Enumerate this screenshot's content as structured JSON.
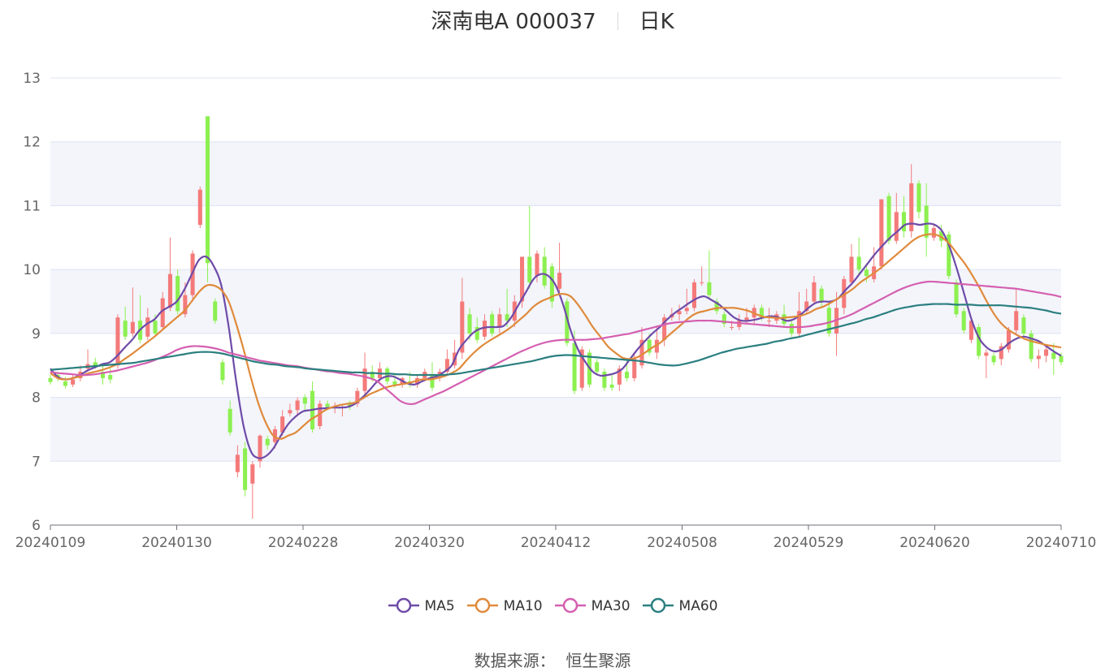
{
  "title": {
    "name": "深南电A 000037",
    "period": "日K"
  },
  "source": {
    "label": "数据来源：",
    "value": "恒生聚源"
  },
  "colors": {
    "up": "#f47a7a",
    "down": "#8cf050",
    "ma5": "#6e4ba8",
    "ma10": "#e08a3b",
    "ma30": "#d55fb0",
    "ma60": "#2b7f80",
    "grid": "#dde3f2",
    "band": "#f3f5fb"
  },
  "chart_data": {
    "type": "candlestick",
    "ylim": [
      6,
      13
    ],
    "yticks": [
      6,
      7,
      8,
      9,
      10,
      11,
      12,
      13
    ],
    "grid": true,
    "legend_position": "bottom",
    "x_range": [
      "20240109",
      "20240710"
    ],
    "xticks": [
      "20240109",
      "20240130",
      "20240228",
      "20240320",
      "20240412",
      "20240508",
      "20240529",
      "20240620",
      "20240710"
    ],
    "candles": [
      [
        8.3,
        8.24,
        8.35,
        8.2
      ],
      [
        8.35,
        8.3,
        8.4,
        8.25
      ],
      [
        8.25,
        8.18,
        8.32,
        8.14
      ],
      [
        8.2,
        8.28,
        8.35,
        8.16
      ],
      [
        8.3,
        8.4,
        8.5,
        8.25
      ],
      [
        8.45,
        8.52,
        8.75,
        8.4
      ],
      [
        8.55,
        8.5,
        8.62,
        8.45
      ],
      [
        8.4,
        8.3,
        8.5,
        8.2
      ],
      [
        8.35,
        8.28,
        8.45,
        8.22
      ],
      [
        8.5,
        9.25,
        9.3,
        8.45
      ],
      [
        9.2,
        8.95,
        9.42,
        8.9
      ],
      [
        9.0,
        9.18,
        9.72,
        8.95
      ],
      [
        9.2,
        8.9,
        9.6,
        8.85
      ],
      [
        8.95,
        9.25,
        9.4,
        8.9
      ],
      [
        9.2,
        9.0,
        9.3,
        8.95
      ],
      [
        9.1,
        9.55,
        9.65,
        9.05
      ],
      [
        9.4,
        9.93,
        10.5,
        9.35
      ],
      [
        9.9,
        9.35,
        10.0,
        9.3
      ],
      [
        9.3,
        9.6,
        9.8,
        9.25
      ],
      [
        9.6,
        10.25,
        10.3,
        9.5
      ],
      [
        10.7,
        11.25,
        11.3,
        10.65
      ],
      [
        12.4,
        10.1,
        12.4,
        9.8
      ],
      [
        9.5,
        9.2,
        9.55,
        9.15
      ],
      [
        8.55,
        8.27,
        8.6,
        8.2
      ],
      [
        7.82,
        7.45,
        7.95,
        7.4
      ],
      [
        6.83,
        7.1,
        7.25,
        6.75
      ],
      [
        7.2,
        6.55,
        7.3,
        6.45
      ],
      [
        6.65,
        6.95,
        7.0,
        6.1
      ],
      [
        7.0,
        7.4,
        7.42,
        6.9
      ],
      [
        7.35,
        7.25,
        7.4,
        7.18
      ],
      [
        7.3,
        7.5,
        7.55,
        7.2
      ],
      [
        7.45,
        7.7,
        7.8,
        7.4
      ],
      [
        7.75,
        7.8,
        7.9,
        7.7
      ],
      [
        7.8,
        7.95,
        8.0,
        7.7
      ],
      [
        8.0,
        7.9,
        8.05,
        7.8
      ],
      [
        8.1,
        7.5,
        8.25,
        7.45
      ],
      [
        7.55,
        7.9,
        7.95,
        7.5
      ],
      [
        7.9,
        7.85,
        7.95,
        7.8
      ],
      [
        7.85,
        7.85,
        7.92,
        7.75
      ],
      [
        7.85,
        7.85,
        7.9,
        7.7
      ],
      [
        7.9,
        7.85,
        7.95,
        7.8
      ],
      [
        7.9,
        8.1,
        8.15,
        7.85
      ],
      [
        8.1,
        8.45,
        8.7,
        8.0
      ],
      [
        8.4,
        8.3,
        8.5,
        8.25
      ],
      [
        8.3,
        8.45,
        8.55,
        8.25
      ],
      [
        8.45,
        8.25,
        8.48,
        8.2
      ],
      [
        8.25,
        8.2,
        8.35,
        8.15
      ],
      [
        8.2,
        8.3,
        8.32,
        8.15
      ],
      [
        8.25,
        8.2,
        8.4,
        8.15
      ],
      [
        8.2,
        8.3,
        8.35,
        8.15
      ],
      [
        8.3,
        8.4,
        8.45,
        8.25
      ],
      [
        8.35,
        8.15,
        8.55,
        8.1
      ],
      [
        8.3,
        8.4,
        8.45,
        8.25
      ],
      [
        8.4,
        8.6,
        8.75,
        8.35
      ],
      [
        8.5,
        8.7,
        8.9,
        8.45
      ],
      [
        8.7,
        9.5,
        9.87,
        8.6
      ],
      [
        9.3,
        9.0,
        9.4,
        8.9
      ],
      [
        9.1,
        8.9,
        9.25,
        8.85
      ],
      [
        8.95,
        9.2,
        9.3,
        8.9
      ],
      [
        9.3,
        9.0,
        9.35,
        8.95
      ],
      [
        9.1,
        9.3,
        9.4,
        9.0
      ],
      [
        9.3,
        9.2,
        9.7,
        9.1
      ],
      [
        9.2,
        9.5,
        9.6,
        9.1
      ],
      [
        9.5,
        10.2,
        10.2,
        9.4
      ],
      [
        10.2,
        9.8,
        11.0,
        9.7
      ],
      [
        9.9,
        10.25,
        10.3,
        9.8
      ],
      [
        10.2,
        9.75,
        10.35,
        9.7
      ],
      [
        10.05,
        9.5,
        10.1,
        9.4
      ],
      [
        9.7,
        9.95,
        10.42,
        9.65
      ],
      [
        9.5,
        8.85,
        9.55,
        8.8
      ],
      [
        8.85,
        8.1,
        9.05,
        8.05
      ],
      [
        8.15,
        8.75,
        8.8,
        8.1
      ],
      [
        8.7,
        8.2,
        8.75,
        8.15
      ],
      [
        8.55,
        8.4,
        8.6,
        8.35
      ],
      [
        8.4,
        8.15,
        8.45,
        8.1
      ],
      [
        8.2,
        8.15,
        8.35,
        8.1
      ],
      [
        8.2,
        8.45,
        8.5,
        8.1
      ],
      [
        8.4,
        8.3,
        8.6,
        8.25
      ],
      [
        8.3,
        8.6,
        8.7,
        8.25
      ],
      [
        8.5,
        8.9,
        9.1,
        8.45
      ],
      [
        8.9,
        8.7,
        9.0,
        8.65
      ],
      [
        8.7,
        8.9,
        9.1,
        8.6
      ],
      [
        8.9,
        9.25,
        9.3,
        8.8
      ],
      [
        9.25,
        9.3,
        9.4,
        9.2
      ],
      [
        9.3,
        9.35,
        9.45,
        9.2
      ],
      [
        9.35,
        9.4,
        9.7,
        9.3
      ],
      [
        9.4,
        9.8,
        9.85,
        9.35
      ],
      [
        9.8,
        9.8,
        10.05,
        9.75
      ],
      [
        9.8,
        9.6,
        10.3,
        9.55
      ],
      [
        9.5,
        9.35,
        9.55,
        9.3
      ],
      [
        9.3,
        9.15,
        9.35,
        9.1
      ],
      [
        9.1,
        9.1,
        9.2,
        9.05
      ],
      [
        9.1,
        9.2,
        9.3,
        9.05
      ],
      [
        9.2,
        9.25,
        9.4,
        9.15
      ],
      [
        9.25,
        9.4,
        9.45,
        9.15
      ],
      [
        9.4,
        9.25,
        9.45,
        9.2
      ],
      [
        9.2,
        9.2,
        9.4,
        9.1
      ],
      [
        9.2,
        9.3,
        9.35,
        9.15
      ],
      [
        9.3,
        9.15,
        9.45,
        9.1
      ],
      [
        9.15,
        9.0,
        9.2,
        8.95
      ],
      [
        9.0,
        9.35,
        9.65,
        8.95
      ],
      [
        9.35,
        9.5,
        9.7,
        9.3
      ],
      [
        9.5,
        9.8,
        9.9,
        9.45
      ],
      [
        9.7,
        9.5,
        9.75,
        9.4
      ],
      [
        9.4,
        9.0,
        9.5,
        8.95
      ],
      [
        9.0,
        9.4,
        9.65,
        8.65
      ],
      [
        9.4,
        9.85,
        9.9,
        9.3
      ],
      [
        9.8,
        10.2,
        10.4,
        9.75
      ],
      [
        10.2,
        10.0,
        10.5,
        9.9
      ],
      [
        10.0,
        9.9,
        10.1,
        9.8
      ],
      [
        9.85,
        10.05,
        10.35,
        9.8
      ],
      [
        10.05,
        11.1,
        11.1,
        10.0
      ],
      [
        11.15,
        10.45,
        11.2,
        10.4
      ],
      [
        10.45,
        10.9,
        11.2,
        10.4
      ],
      [
        10.9,
        10.6,
        11.15,
        10.5
      ],
      [
        10.6,
        11.35,
        11.65,
        10.5
      ],
      [
        11.35,
        10.9,
        11.4,
        10.8
      ],
      [
        11.0,
        10.5,
        11.35,
        10.2
      ],
      [
        10.5,
        10.65,
        10.7,
        10.45
      ],
      [
        10.6,
        10.45,
        10.7,
        10.35
      ],
      [
        10.55,
        9.9,
        10.6,
        9.85
      ],
      [
        9.8,
        9.3,
        9.85,
        9.25
      ],
      [
        9.35,
        9.05,
        9.4,
        9.0
      ],
      [
        8.9,
        9.2,
        9.25,
        8.85
      ],
      [
        9.1,
        8.65,
        9.15,
        8.6
      ],
      [
        8.65,
        8.7,
        8.75,
        8.3
      ],
      [
        8.65,
        8.55,
        8.7,
        8.5
      ],
      [
        8.6,
        8.8,
        8.85,
        8.5
      ],
      [
        8.75,
        9.05,
        9.1,
        8.7
      ],
      [
        9.05,
        9.35,
        9.7,
        9.0
      ],
      [
        9.25,
        9.0,
        9.3,
        8.95
      ],
      [
        9.0,
        8.6,
        9.05,
        8.55
      ],
      [
        8.6,
        8.65,
        8.75,
        8.45
      ],
      [
        8.65,
        8.75,
        8.8,
        8.55
      ],
      [
        8.7,
        8.6,
        8.85,
        8.35
      ],
      [
        8.65,
        8.55,
        8.7,
        8.5
      ]
    ],
    "series": [
      {
        "name": "MA5",
        "values": [
          8.45,
          8.32,
          8.28,
          8.3,
          8.35,
          8.42,
          8.47,
          8.52,
          8.55,
          8.65,
          8.78,
          8.9,
          9.05,
          9.15,
          9.22,
          9.35,
          9.42,
          9.5,
          9.68,
          9.92,
          10.15,
          10.2,
          10.05,
          9.75,
          9.1,
          8.25,
          7.55,
          7.15,
          7.05,
          7.08,
          7.2,
          7.4,
          7.58,
          7.7,
          7.78,
          7.8,
          7.82,
          7.83,
          7.84,
          7.84,
          7.85,
          7.9,
          8.0,
          8.12,
          8.25,
          8.32,
          8.33,
          8.28,
          8.22,
          8.2,
          8.25,
          8.3,
          8.33,
          8.4,
          8.5,
          8.75,
          8.9,
          9.02,
          9.08,
          9.1,
          9.1,
          9.12,
          9.25,
          9.45,
          9.65,
          9.85,
          9.93,
          9.9,
          9.75,
          9.45,
          9.05,
          8.75,
          8.55,
          8.4,
          8.34,
          8.35,
          8.38,
          8.45,
          8.6,
          8.75,
          8.88,
          9.0,
          9.1,
          9.22,
          9.32,
          9.4,
          9.48,
          9.55,
          9.58,
          9.52,
          9.45,
          9.35,
          9.25,
          9.2,
          9.2,
          9.22,
          9.25,
          9.27,
          9.25,
          9.2,
          9.22,
          9.3,
          9.4,
          9.48,
          9.5,
          9.5,
          9.55,
          9.68,
          9.8,
          9.95,
          10.1,
          10.25,
          10.38,
          10.5,
          10.6,
          10.7,
          10.72,
          10.7,
          10.72,
          10.7,
          10.6,
          10.35,
          10.0,
          9.6,
          9.2,
          8.92,
          8.78,
          8.72,
          8.75,
          8.85,
          8.92,
          8.95,
          8.92,
          8.88,
          8.8,
          8.72,
          8.65
        ]
      },
      {
        "name": "MA10",
        "values": [
          8.38,
          8.3,
          8.28,
          8.3,
          8.33,
          8.37,
          8.4,
          8.43,
          8.47,
          8.52,
          8.6,
          8.68,
          8.77,
          8.86,
          8.95,
          9.05,
          9.15,
          9.25,
          9.35,
          9.5,
          9.65,
          9.75,
          9.75,
          9.68,
          9.5,
          9.15,
          8.75,
          8.3,
          7.9,
          7.6,
          7.4,
          7.35,
          7.4,
          7.45,
          7.55,
          7.65,
          7.72,
          7.8,
          7.85,
          7.88,
          7.9,
          7.92,
          7.98,
          8.05,
          8.1,
          8.15,
          8.18,
          8.2,
          8.22,
          8.25,
          8.28,
          8.28,
          8.3,
          8.33,
          8.38,
          8.45,
          8.58,
          8.7,
          8.8,
          8.88,
          8.95,
          9.02,
          9.1,
          9.2,
          9.3,
          9.42,
          9.5,
          9.55,
          9.6,
          9.62,
          9.58,
          9.45,
          9.28,
          9.1,
          8.95,
          8.8,
          8.7,
          8.62,
          8.6,
          8.63,
          8.7,
          8.78,
          8.85,
          8.95,
          9.05,
          9.15,
          9.25,
          9.32,
          9.35,
          9.38,
          9.4,
          9.4,
          9.4,
          9.38,
          9.35,
          9.3,
          9.26,
          9.25,
          9.24,
          9.25,
          9.26,
          9.28,
          9.32,
          9.38,
          9.42,
          9.48,
          9.55,
          9.62,
          9.7,
          9.8,
          9.88,
          9.96,
          10.05,
          10.15,
          10.25,
          10.35,
          10.45,
          10.52,
          10.55,
          10.55,
          10.5,
          10.4,
          10.25,
          10.1,
          9.92,
          9.72,
          9.5,
          9.3,
          9.15,
          9.05,
          8.98,
          8.92,
          8.88,
          8.85,
          8.82,
          8.8,
          8.78
        ]
      },
      {
        "name": "MA30",
        "values": [
          8.4,
          8.38,
          8.37,
          8.36,
          8.35,
          8.35,
          8.36,
          8.38,
          8.4,
          8.42,
          8.45,
          8.48,
          8.51,
          8.54,
          8.58,
          8.63,
          8.68,
          8.74,
          8.78,
          8.8,
          8.8,
          8.79,
          8.77,
          8.74,
          8.7,
          8.67,
          8.64,
          8.61,
          8.58,
          8.56,
          8.54,
          8.52,
          8.5,
          8.49,
          8.47,
          8.45,
          8.43,
          8.41,
          8.4,
          8.38,
          8.37,
          8.35,
          8.33,
          8.3,
          8.25,
          8.15,
          8.05,
          7.95,
          7.9,
          7.9,
          7.95,
          8.0,
          8.05,
          8.1,
          8.16,
          8.22,
          8.28,
          8.34,
          8.4,
          8.46,
          8.52,
          8.58,
          8.64,
          8.7,
          8.75,
          8.8,
          8.84,
          8.87,
          8.89,
          8.9,
          8.9,
          8.9,
          8.9,
          8.91,
          8.92,
          8.94,
          8.96,
          8.98,
          9.0,
          9.03,
          9.06,
          9.09,
          9.12,
          9.15,
          9.17,
          9.18,
          9.19,
          9.2,
          9.2,
          9.2,
          9.19,
          9.18,
          9.17,
          9.16,
          9.15,
          9.14,
          9.13,
          9.12,
          9.11,
          9.1,
          9.1,
          9.1,
          9.11,
          9.13,
          9.15,
          9.18,
          9.22,
          9.26,
          9.31,
          9.37,
          9.43,
          9.49,
          9.55,
          9.61,
          9.67,
          9.72,
          9.76,
          9.79,
          9.81,
          9.81,
          9.8,
          9.79,
          9.78,
          9.77,
          9.76,
          9.75,
          9.74,
          9.73,
          9.72,
          9.71,
          9.7,
          9.68,
          9.66,
          9.64,
          9.62,
          9.6,
          9.57
        ]
      },
      {
        "name": "MA60",
        "values": [
          8.43,
          8.44,
          8.45,
          8.46,
          8.47,
          8.48,
          8.49,
          8.5,
          8.51,
          8.52,
          8.53,
          8.54,
          8.56,
          8.58,
          8.6,
          8.62,
          8.64,
          8.66,
          8.68,
          8.7,
          8.71,
          8.71,
          8.7,
          8.68,
          8.65,
          8.62,
          8.59,
          8.56,
          8.54,
          8.52,
          8.51,
          8.49,
          8.48,
          8.47,
          8.45,
          8.44,
          8.43,
          8.42,
          8.41,
          8.4,
          8.39,
          8.39,
          8.38,
          8.38,
          8.37,
          8.37,
          8.36,
          8.36,
          8.35,
          8.35,
          8.35,
          8.35,
          8.35,
          8.36,
          8.37,
          8.39,
          8.41,
          8.43,
          8.45,
          8.47,
          8.49,
          8.51,
          8.53,
          8.55,
          8.57,
          8.6,
          8.63,
          8.65,
          8.66,
          8.66,
          8.65,
          8.64,
          8.63,
          8.62,
          8.61,
          8.6,
          8.59,
          8.58,
          8.57,
          8.55,
          8.53,
          8.51,
          8.5,
          8.5,
          8.52,
          8.55,
          8.58,
          8.62,
          8.66,
          8.7,
          8.73,
          8.76,
          8.78,
          8.8,
          8.82,
          8.84,
          8.87,
          8.89,
          8.92,
          8.94,
          8.97,
          9.0,
          9.03,
          9.06,
          9.09,
          9.12,
          9.15,
          9.18,
          9.22,
          9.25,
          9.29,
          9.33,
          9.37,
          9.4,
          9.42,
          9.44,
          9.45,
          9.46,
          9.46,
          9.46,
          9.45,
          9.45,
          9.45,
          9.44,
          9.44,
          9.44,
          9.44,
          9.43,
          9.42,
          9.41,
          9.4,
          9.38,
          9.36,
          9.33,
          9.31
        ]
      }
    ]
  }
}
